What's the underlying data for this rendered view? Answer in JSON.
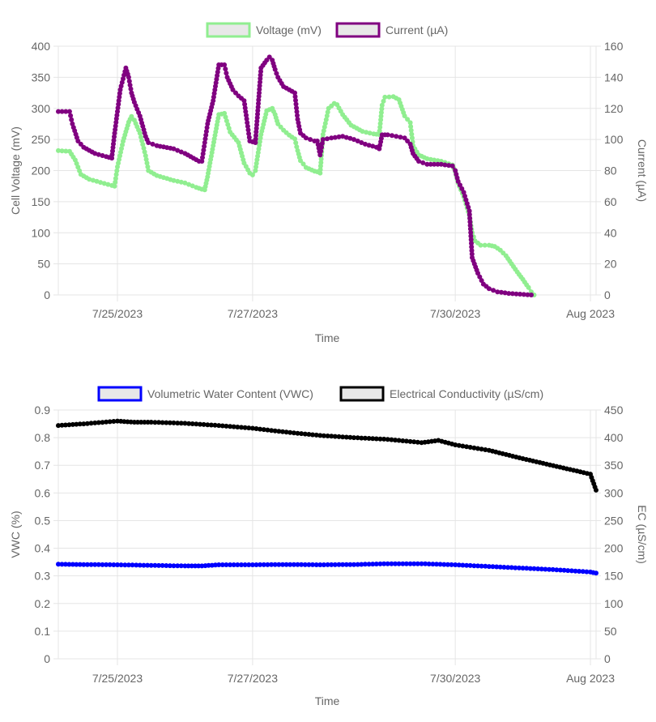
{
  "chart_data": [
    {
      "type": "line",
      "xlabel": "Time",
      "ylabel_left": "Cell Voltage (mV)",
      "ylabel_right": "Current (µA)",
      "x_ticks": [
        "7/25/2023",
        "7/27/2023",
        "7/30/2023",
        "Aug 2023"
      ],
      "x_tick_positions": [
        "2023-07-25",
        "2023-07-27",
        "2023-07-30",
        "2023-08-01"
      ],
      "xlim": [
        "2023-07-24T03:00",
        "2023-08-01T02:00"
      ],
      "ylim_left": [
        0,
        400
      ],
      "ylim_right": [
        0,
        160
      ],
      "y_ticks_left": [
        "0",
        "50",
        "100",
        "150",
        "200",
        "250",
        "300",
        "350",
        "400"
      ],
      "y_ticks_right": [
        "0",
        "20",
        "40",
        "60",
        "80",
        "100",
        "120",
        "140",
        "160"
      ],
      "grid": true,
      "legend_position": "top-center",
      "series": [
        {
          "name": "Voltage (mV)",
          "axis": "left",
          "color": "#90ee90",
          "points": [
            [
              "2023-07-24T03:00",
              232
            ],
            [
              "2023-07-24T07:00",
              231
            ],
            [
              "2023-07-24T09:00",
              217
            ],
            [
              "2023-07-24T11:00",
              194
            ],
            [
              "2023-07-24T14:00",
              186
            ],
            [
              "2023-07-24T18:00",
              181
            ],
            [
              "2023-07-24T22:00",
              176
            ],
            [
              "2023-07-24T23:00",
              175
            ],
            [
              "2023-07-25T00:00",
              206
            ],
            [
              "2023-07-25T02:00",
              247
            ],
            [
              "2023-07-25T04:00",
              278
            ],
            [
              "2023-07-25T05:00",
              287
            ],
            [
              "2023-07-25T06:00",
              281
            ],
            [
              "2023-07-25T08:00",
              260
            ],
            [
              "2023-07-25T10:00",
              224
            ],
            [
              "2023-07-25T11:00",
              200
            ],
            [
              "2023-07-25T14:00",
              192
            ],
            [
              "2023-07-25T20:00",
              184
            ],
            [
              "2023-07-26T00:00",
              180
            ],
            [
              "2023-07-26T04:00",
              173
            ],
            [
              "2023-07-26T06:00",
              170
            ],
            [
              "2023-07-26T07:00",
              169
            ],
            [
              "2023-07-26T08:00",
              190
            ],
            [
              "2023-07-26T10:00",
              240
            ],
            [
              "2023-07-26T12:00",
              290
            ],
            [
              "2023-07-26T14:00",
              292
            ],
            [
              "2023-07-26T16:00",
              262
            ],
            [
              "2023-07-26T19:00",
              245
            ],
            [
              "2023-07-26T21:00",
              212
            ],
            [
              "2023-07-26T23:00",
              196
            ],
            [
              "2023-07-27T00:00",
              193
            ],
            [
              "2023-07-27T01:00",
              200
            ],
            [
              "2023-07-27T03:00",
              258
            ],
            [
              "2023-07-27T05:00",
              296
            ],
            [
              "2023-07-27T07:00",
              300
            ],
            [
              "2023-07-27T08:00",
              290
            ],
            [
              "2023-07-27T09:00",
              275
            ],
            [
              "2023-07-27T11:00",
              265
            ],
            [
              "2023-07-27T13:00",
              257
            ],
            [
              "2023-07-27T15:00",
              251
            ],
            [
              "2023-07-27T16:00",
              232
            ],
            [
              "2023-07-27T17:00",
              216
            ],
            [
              "2023-07-27T19:00",
              205
            ],
            [
              "2023-07-27T22:00",
              199
            ],
            [
              "2023-07-27T23:00",
              198
            ],
            [
              "2023-07-28T00:00",
              196
            ],
            [
              "2023-07-28T01:00",
              258
            ],
            [
              "2023-07-28T03:00",
              300
            ],
            [
              "2023-07-28T05:00",
              308
            ],
            [
              "2023-07-28T06:00",
              306
            ],
            [
              "2023-07-28T08:00",
              290
            ],
            [
              "2023-07-28T11:00",
              273
            ],
            [
              "2023-07-28T15:00",
              263
            ],
            [
              "2023-07-28T19:00",
              259
            ],
            [
              "2023-07-28T21:00",
              258
            ],
            [
              "2023-07-28T22:00",
              305
            ],
            [
              "2023-07-28T23:00",
              318
            ],
            [
              "2023-07-29T02:00",
              319
            ],
            [
              "2023-07-29T04:00",
              314
            ],
            [
              "2023-07-29T06:00",
              288
            ],
            [
              "2023-07-29T08:00",
              277
            ],
            [
              "2023-07-29T09:00",
              240
            ],
            [
              "2023-07-29T11:00",
              225
            ],
            [
              "2023-07-29T14:00",
              219
            ],
            [
              "2023-07-29T19:00",
              215
            ],
            [
              "2023-07-29T23:00",
              209
            ],
            [
              "2023-07-30T00:00",
              198
            ],
            [
              "2023-07-30T01:00",
              180
            ],
            [
              "2023-07-30T03:00",
              158
            ],
            [
              "2023-07-30T05:00",
              128
            ],
            [
              "2023-07-30T06:00",
              100
            ],
            [
              "2023-07-30T07:00",
              87
            ],
            [
              "2023-07-30T09:00",
              80
            ],
            [
              "2023-07-30T12:00",
              80
            ],
            [
              "2023-07-30T14:00",
              78
            ],
            [
              "2023-07-30T16:00",
              72
            ],
            [
              "2023-07-30T18:00",
              63
            ],
            [
              "2023-07-30T20:00",
              50
            ],
            [
              "2023-07-30T22:00",
              37
            ],
            [
              "2023-07-31T00:00",
              25
            ],
            [
              "2023-07-31T02:00",
              12
            ],
            [
              "2023-07-31T03:00",
              5
            ],
            [
              "2023-07-31T04:00",
              0
            ]
          ]
        },
        {
          "name": "Current (µA)",
          "axis": "right",
          "color": "#800080",
          "points": [
            [
              "2023-07-24T03:00",
              118
            ],
            [
              "2023-07-24T07:00",
              118
            ],
            [
              "2023-07-24T08:00",
              110
            ],
            [
              "2023-07-24T10:00",
              99
            ],
            [
              "2023-07-24T12:00",
              95
            ],
            [
              "2023-07-24T16:00",
              91
            ],
            [
              "2023-07-24T20:00",
              89
            ],
            [
              "2023-07-24T22:00",
              88
            ],
            [
              "2023-07-24T23:00",
              104
            ],
            [
              "2023-07-25T01:00",
              132
            ],
            [
              "2023-07-25T03:00",
              146
            ],
            [
              "2023-07-25T04:00",
              140
            ],
            [
              "2023-07-25T05:00",
              130
            ],
            [
              "2023-07-25T06:00",
              124
            ],
            [
              "2023-07-25T08:00",
              115
            ],
            [
              "2023-07-25T10:00",
              102
            ],
            [
              "2023-07-25T11:00",
              98
            ],
            [
              "2023-07-25T14:00",
              96
            ],
            [
              "2023-07-25T20:00",
              94
            ],
            [
              "2023-07-26T00:00",
              91
            ],
            [
              "2023-07-26T04:00",
              87
            ],
            [
              "2023-07-26T05:00",
              86
            ],
            [
              "2023-07-26T06:00",
              86
            ],
            [
              "2023-07-26T08:00",
              110
            ],
            [
              "2023-07-26T10:00",
              125
            ],
            [
              "2023-07-26T12:00",
              148
            ],
            [
              "2023-07-26T14:00",
              148
            ],
            [
              "2023-07-26T15:00",
              140
            ],
            [
              "2023-07-26T17:00",
              132
            ],
            [
              "2023-07-26T19:00",
              128
            ],
            [
              "2023-07-26T21:00",
              125
            ],
            [
              "2023-07-26T23:00",
              99
            ],
            [
              "2023-07-27T01:00",
              98
            ],
            [
              "2023-07-27T03:00",
              146
            ],
            [
              "2023-07-27T05:00",
              151
            ],
            [
              "2023-07-27T06:00",
              153
            ],
            [
              "2023-07-27T07:00",
              151
            ],
            [
              "2023-07-27T08:00",
              145
            ],
            [
              "2023-07-27T09:00",
              140
            ],
            [
              "2023-07-27T11:00",
              134
            ],
            [
              "2023-07-27T13:00",
              132
            ],
            [
              "2023-07-27T15:00",
              130
            ],
            [
              "2023-07-27T16:00",
              113
            ],
            [
              "2023-07-27T17:00",
              104
            ],
            [
              "2023-07-27T19:00",
              101
            ],
            [
              "2023-07-27T22:00",
              99
            ],
            [
              "2023-07-27T23:00",
              99
            ],
            [
              "2023-07-28T00:00",
              90
            ],
            [
              "2023-07-28T01:00",
              100
            ],
            [
              "2023-07-28T04:00",
              101
            ],
            [
              "2023-07-28T08:00",
              102
            ],
            [
              "2023-07-28T12:00",
              100
            ],
            [
              "2023-07-28T16:00",
              97
            ],
            [
              "2023-07-28T20:00",
              95
            ],
            [
              "2023-07-28T21:00",
              94
            ],
            [
              "2023-07-28T22:00",
              103
            ],
            [
              "2023-07-29T00:00",
              103
            ],
            [
              "2023-07-29T03:00",
              102
            ],
            [
              "2023-07-29T06:00",
              101
            ],
            [
              "2023-07-29T08:00",
              97
            ],
            [
              "2023-07-29T09:00",
              91
            ],
            [
              "2023-07-29T11:00",
              86
            ],
            [
              "2023-07-29T14:00",
              84
            ],
            [
              "2023-07-29T19:00",
              84
            ],
            [
              "2023-07-29T23:00",
              83
            ],
            [
              "2023-07-30T00:00",
              80
            ],
            [
              "2023-07-30T01:00",
              73
            ],
            [
              "2023-07-30T03:00",
              66
            ],
            [
              "2023-07-30T05:00",
              54
            ],
            [
              "2023-07-30T06:00",
              24
            ],
            [
              "2023-07-30T08:00",
              14
            ],
            [
              "2023-07-30T10:00",
              7
            ],
            [
              "2023-07-30T12:00",
              4
            ],
            [
              "2023-07-30T15:00",
              2
            ],
            [
              "2023-07-30T19:00",
              1
            ],
            [
              "2023-07-30T23:00",
              0.5
            ],
            [
              "2023-07-31T03:00",
              0
            ]
          ]
        }
      ]
    },
    {
      "type": "line",
      "xlabel": "Time",
      "ylabel_left": "VWC (%)",
      "ylabel_right": "EC (µS/cm)",
      "x_ticks": [
        "7/25/2023",
        "7/27/2023",
        "7/30/2023",
        "Aug 2023"
      ],
      "x_tick_positions": [
        "2023-07-25",
        "2023-07-27",
        "2023-07-30",
        "2023-08-01"
      ],
      "xlim": [
        "2023-07-24T03:00",
        "2023-08-01T02:00"
      ],
      "ylim_left": [
        0,
        0.9
      ],
      "ylim_right": [
        0,
        450
      ],
      "y_ticks_left": [
        "0",
        "0.1",
        "0.2",
        "0.3",
        "0.4",
        "0.5",
        "0.6",
        "0.7",
        "0.8",
        "0.9"
      ],
      "y_ticks_right": [
        "0",
        "50",
        "100",
        "150",
        "200",
        "250",
        "300",
        "350",
        "400",
        "450"
      ],
      "grid": true,
      "legend_position": "top-center",
      "series": [
        {
          "name": "Volumetric Water Content (VWC)",
          "axis": "left",
          "color": "#0000ff",
          "points": [
            [
              "2023-07-24T03:00",
              0.342
            ],
            [
              "2023-07-24T12:00",
              0.341
            ],
            [
              "2023-07-25T00:00",
              0.34
            ],
            [
              "2023-07-25T12:00",
              0.338
            ],
            [
              "2023-07-26T00:00",
              0.336
            ],
            [
              "2023-07-26T06:00",
              0.336
            ],
            [
              "2023-07-26T12:00",
              0.34
            ],
            [
              "2023-07-27T00:00",
              0.34
            ],
            [
              "2023-07-27T12:00",
              0.341
            ],
            [
              "2023-07-28T00:00",
              0.34
            ],
            [
              "2023-07-28T12:00",
              0.341
            ],
            [
              "2023-07-29T00:00",
              0.344
            ],
            [
              "2023-07-29T12:00",
              0.344
            ],
            [
              "2023-07-30T00:00",
              0.34
            ],
            [
              "2023-07-30T12:00",
              0.334
            ],
            [
              "2023-07-31T00:00",
              0.328
            ],
            [
              "2023-07-31T12:00",
              0.322
            ],
            [
              "2023-08-01T00:00",
              0.314
            ],
            [
              "2023-08-01T02:00",
              0.31
            ]
          ]
        },
        {
          "name": "Electrical Conductivity (µS/cm)",
          "axis": "right",
          "color": "#000000",
          "points": [
            [
              "2023-07-24T03:00",
              422
            ],
            [
              "2023-07-24T12:00",
              425
            ],
            [
              "2023-07-25T00:00",
              430
            ],
            [
              "2023-07-25T06:00",
              428
            ],
            [
              "2023-07-25T12:00",
              428
            ],
            [
              "2023-07-26T00:00",
              426
            ],
            [
              "2023-07-26T12:00",
              422
            ],
            [
              "2023-07-27T00:00",
              417
            ],
            [
              "2023-07-27T12:00",
              410
            ],
            [
              "2023-07-28T00:00",
              404
            ],
            [
              "2023-07-28T12:00",
              400
            ],
            [
              "2023-07-29T00:00",
              397
            ],
            [
              "2023-07-29T12:00",
              391
            ],
            [
              "2023-07-29T18:00",
              395
            ],
            [
              "2023-07-30T00:00",
              387
            ],
            [
              "2023-07-30T12:00",
              377
            ],
            [
              "2023-07-31T00:00",
              362
            ],
            [
              "2023-07-31T12:00",
              348
            ],
            [
              "2023-08-01T00:00",
              334
            ],
            [
              "2023-08-01T02:00",
              305
            ]
          ]
        }
      ]
    }
  ]
}
